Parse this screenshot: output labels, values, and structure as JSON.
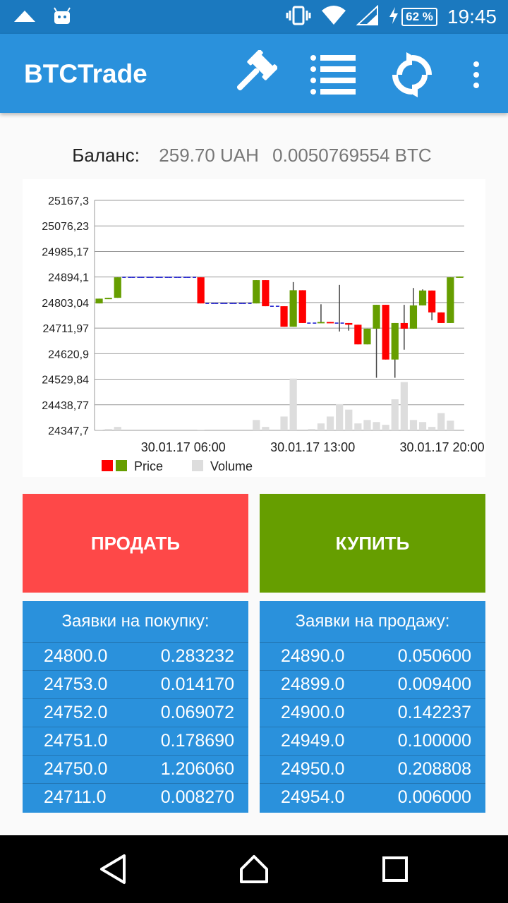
{
  "status_bar": {
    "time": "19:45",
    "battery_percent": "62 %",
    "icons": [
      "notification-icon",
      "android-icon",
      "vibrate-icon",
      "wifi-icon",
      "signal-icon",
      "charging-icon",
      "battery-icon"
    ]
  },
  "app_bar": {
    "title": "BTCTrade",
    "actions": [
      "gavel-icon",
      "list-icon",
      "refresh-icon",
      "more-vert-icon"
    ]
  },
  "balance": {
    "label": "Баланс:",
    "uah": "259.70 UAH",
    "btc": "0.0050769554 BTC"
  },
  "chart_data": {
    "type": "candlestick",
    "y_ticks": [
      "25167,3",
      "25076,23",
      "24985,17",
      "24894,1",
      "24803,04",
      "24711,97",
      "24620,9",
      "24529,84",
      "24438,77",
      "24347,7"
    ],
    "ylim": [
      24347.7,
      25167.3
    ],
    "x_ticks": [
      "30.01.17 06:00",
      "30.01.17 13:00",
      "30.01.17 20:00"
    ],
    "legend": [
      {
        "label": "Price",
        "colors": [
          "#ff0000",
          "#669e00"
        ]
      },
      {
        "label": "Volume",
        "colors": [
          "#dddddd"
        ]
      }
    ],
    "grid": true,
    "colors": {
      "up": "#669e00",
      "down": "#ff0000",
      "flat": "#1010cc",
      "volume": "#dddddd"
    },
    "candles": [
      {
        "open": 24800,
        "close": 24817,
        "high": 24817,
        "low": 24800,
        "volume": 0.01
      },
      {
        "open": 24817,
        "close": 24820,
        "high": 24820,
        "low": 24817,
        "volume": 0.02
      },
      {
        "open": 24820,
        "close": 24893,
        "high": 24893,
        "low": 24820,
        "volume": 0.05
      },
      {
        "open": 24893,
        "close": 24893,
        "high": 24893,
        "low": 24893,
        "volume": 0.0
      },
      {
        "open": 24893,
        "close": 24893,
        "high": 24893,
        "low": 24893,
        "volume": 0.0
      },
      {
        "open": 24893,
        "close": 24893,
        "high": 24893,
        "low": 24893,
        "volume": 0.0
      },
      {
        "open": 24893,
        "close": 24893,
        "high": 24893,
        "low": 24893,
        "volume": 0.0
      },
      {
        "open": 24893,
        "close": 24893,
        "high": 24893,
        "low": 24893,
        "volume": 0.0
      },
      {
        "open": 24893,
        "close": 24893,
        "high": 24893,
        "low": 24893,
        "volume": 0.0
      },
      {
        "open": 24893,
        "close": 24893,
        "high": 24893,
        "low": 24893,
        "volume": 0.0
      },
      {
        "open": 24893,
        "close": 24893,
        "high": 24893,
        "low": 24893,
        "volume": 0.0
      },
      {
        "open": 24893,
        "close": 24800,
        "high": 24893,
        "low": 24800,
        "volume": 0.01
      },
      {
        "open": 24800,
        "close": 24800,
        "high": 24800,
        "low": 24800,
        "volume": 0.0
      },
      {
        "open": 24800,
        "close": 24800,
        "high": 24800,
        "low": 24800,
        "volume": 0.0
      },
      {
        "open": 24800,
        "close": 24800,
        "high": 24800,
        "low": 24800,
        "volume": 0.0
      },
      {
        "open": 24800,
        "close": 24800,
        "high": 24800,
        "low": 24800,
        "volume": 0.0
      },
      {
        "open": 24800,
        "close": 24800,
        "high": 24800,
        "low": 24800,
        "volume": 0.0
      },
      {
        "open": 24800,
        "close": 24883,
        "high": 24883,
        "low": 24800,
        "volume": 0.15
      },
      {
        "open": 24883,
        "close": 24790,
        "high": 24883,
        "low": 24790,
        "volume": 0.05
      },
      {
        "open": 24790,
        "close": 24790,
        "high": 24790,
        "low": 24790,
        "volume": 0.0
      },
      {
        "open": 24790,
        "close": 24717,
        "high": 24790,
        "low": 24717,
        "volume": 0.2
      },
      {
        "open": 24717,
        "close": 24847,
        "high": 24876,
        "low": 24717,
        "volume": 0.75
      },
      {
        "open": 24847,
        "close": 24730,
        "high": 24847,
        "low": 24730,
        "volume": 0.0
      },
      {
        "open": 24730,
        "close": 24730,
        "high": 24730,
        "low": 24730,
        "volume": 0.02
      },
      {
        "open": 24730,
        "close": 24734,
        "high": 24797,
        "low": 24730,
        "volume": 0.1
      },
      {
        "open": 24734,
        "close": 24730,
        "high": 24734,
        "low": 24730,
        "volume": 0.2
      },
      {
        "open": 24730,
        "close": 24730,
        "high": 24866,
        "low": 24700,
        "volume": 0.38
      },
      {
        "open": 24730,
        "close": 24724,
        "high": 24730,
        "low": 24703,
        "volume": 0.3
      },
      {
        "open": 24724,
        "close": 24654,
        "high": 24724,
        "low": 24654,
        "volume": 0.1
      },
      {
        "open": 24654,
        "close": 24710,
        "high": 24710,
        "low": 24654,
        "volume": 0.15
      },
      {
        "open": 24710,
        "close": 24795,
        "high": 24795,
        "low": 24535,
        "volume": 0.12
      },
      {
        "open": 24795,
        "close": 24600,
        "high": 24795,
        "low": 24600,
        "volume": 0.08
      },
      {
        "open": 24600,
        "close": 24730,
        "high": 24730,
        "low": 24535,
        "volume": 0.45
      },
      {
        "open": 24730,
        "close": 24710,
        "high": 24795,
        "low": 24635,
        "volume": 0.7
      },
      {
        "open": 24710,
        "close": 24793,
        "high": 24855,
        "low": 24710,
        "volume": 0.15
      },
      {
        "open": 24793,
        "close": 24846,
        "high": 24850,
        "low": 24793,
        "volume": 0.12
      },
      {
        "open": 24846,
        "close": 24768,
        "high": 24846,
        "low": 24740,
        "volume": 0.05
      },
      {
        "open": 24768,
        "close": 24730,
        "high": 24768,
        "low": 24730,
        "volume": 0.25
      },
      {
        "open": 24730,
        "close": 24893,
        "high": 24893,
        "low": 24730,
        "volume": 0.14
      },
      {
        "open": 24893,
        "close": 24896,
        "high": 24896,
        "low": 24893,
        "volume": 0.0
      }
    ]
  },
  "actions": {
    "sell_label": "ПРОДАТЬ",
    "buy_label": "КУПИТЬ"
  },
  "order_books": {
    "bids": {
      "title": "Заявки на покупку:",
      "rows": [
        {
          "price": "24800.0",
          "amount": "0.283232"
        },
        {
          "price": "24753.0",
          "amount": "0.014170"
        },
        {
          "price": "24752.0",
          "amount": "0.069072"
        },
        {
          "price": "24751.0",
          "amount": "0.178690"
        },
        {
          "price": "24750.0",
          "amount": "1.206060"
        },
        {
          "price": "24711.0",
          "amount": "0.008270"
        }
      ]
    },
    "asks": {
      "title": "Заявки на продажу:",
      "rows": [
        {
          "price": "24890.0",
          "amount": "0.050600"
        },
        {
          "price": "24899.0",
          "amount": "0.009400"
        },
        {
          "price": "24900.0",
          "amount": "0.142237"
        },
        {
          "price": "24949.0",
          "amount": "0.100000"
        },
        {
          "price": "24950.0",
          "amount": "0.208808"
        },
        {
          "price": "24954.0",
          "amount": "0.006000"
        }
      ]
    }
  },
  "nav_bar": {
    "buttons": [
      "back-icon",
      "home-icon",
      "recents-icon"
    ]
  }
}
